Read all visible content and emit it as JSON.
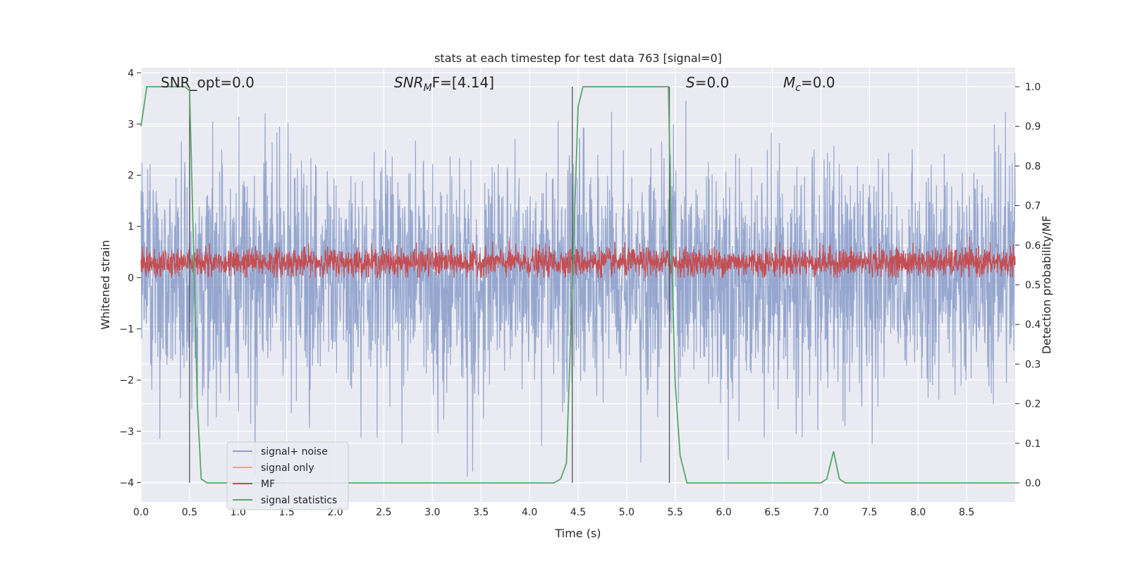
{
  "chart_data": {
    "type": "line",
    "title": "stats at each timestep for test data 763 [signal=0]",
    "xlabel": "Time (s)",
    "ylabel": "Whitened strain",
    "y2label": "Detection probability/MF",
    "xlim": [
      0.0,
      9.0
    ],
    "ylim": [
      -4.38,
      4.1
    ],
    "y2lim": [
      -0.048,
      1.048
    ],
    "x_ticks": [
      "0.0",
      "0.5",
      "1.0",
      "1.5",
      "2.0",
      "2.5",
      "3.0",
      "3.5",
      "4.0",
      "4.5",
      "5.0",
      "5.5",
      "6.0",
      "6.5",
      "7.0",
      "7.5",
      "8.0",
      "8.5"
    ],
    "y_ticks": [
      "−4",
      "−3",
      "−2",
      "−1",
      "0",
      "1",
      "2",
      "3",
      "4"
    ],
    "y2_ticks": [
      "0.0",
      "0.1",
      "0.2",
      "0.3",
      "0.4",
      "0.5",
      "0.6",
      "0.7",
      "0.8",
      "0.9",
      "1.0"
    ],
    "grid": true,
    "legend_position": "lower-left",
    "annotations": {
      "snr_opt": "SNR_opt=0.0",
      "snr_mf_main": "SNR",
      "snr_mf_sub": "M",
      "snr_mf_rest": "F=[4.14]",
      "s_label": "S",
      "s_rest": "=0.0",
      "mc_main": "M",
      "mc_sub": "c",
      "mc_rest": "=0.0"
    },
    "vertical_markers": [
      0.5,
      4.44,
      5.44
    ],
    "series": [
      {
        "name": "signal+ noise",
        "color": "#8da0cb",
        "note": "whitened strain noise, approx N(0,1), duration 9 s"
      },
      {
        "name": "signal only",
        "color": "#e8a489",
        "values": []
      },
      {
        "name": "MF",
        "color": "#c44e52",
        "note": "matched filter output, fluctuating around 0.3"
      },
      {
        "name": "signal statistics",
        "color": "#55a868",
        "x": [
          0.0,
          0.06,
          0.45,
          0.5,
          0.52,
          0.55,
          0.58,
          0.62,
          0.68,
          0.8,
          1.5,
          2.5,
          3.5,
          4.0,
          4.25,
          4.32,
          4.38,
          4.44,
          4.5,
          4.55,
          5.0,
          5.2,
          5.43,
          5.46,
          5.5,
          5.55,
          5.62,
          5.7,
          5.85,
          6.5,
          7.0,
          7.06,
          7.13,
          7.19,
          7.25,
          7.35,
          8.0,
          9.0
        ],
        "y": [
          0.9,
          1.0,
          1.0,
          0.99,
          0.8,
          0.5,
          0.2,
          0.01,
          0.0,
          0.0,
          0.0,
          0.0,
          0.0,
          0.0,
          0.0,
          0.01,
          0.05,
          0.5,
          0.95,
          1.0,
          1.0,
          1.0,
          1.0,
          0.6,
          0.25,
          0.07,
          0.0,
          0.0,
          0.0,
          0.0,
          0.0,
          0.01,
          0.08,
          0.01,
          0.0,
          0.0,
          0.0,
          0.0
        ]
      }
    ]
  }
}
